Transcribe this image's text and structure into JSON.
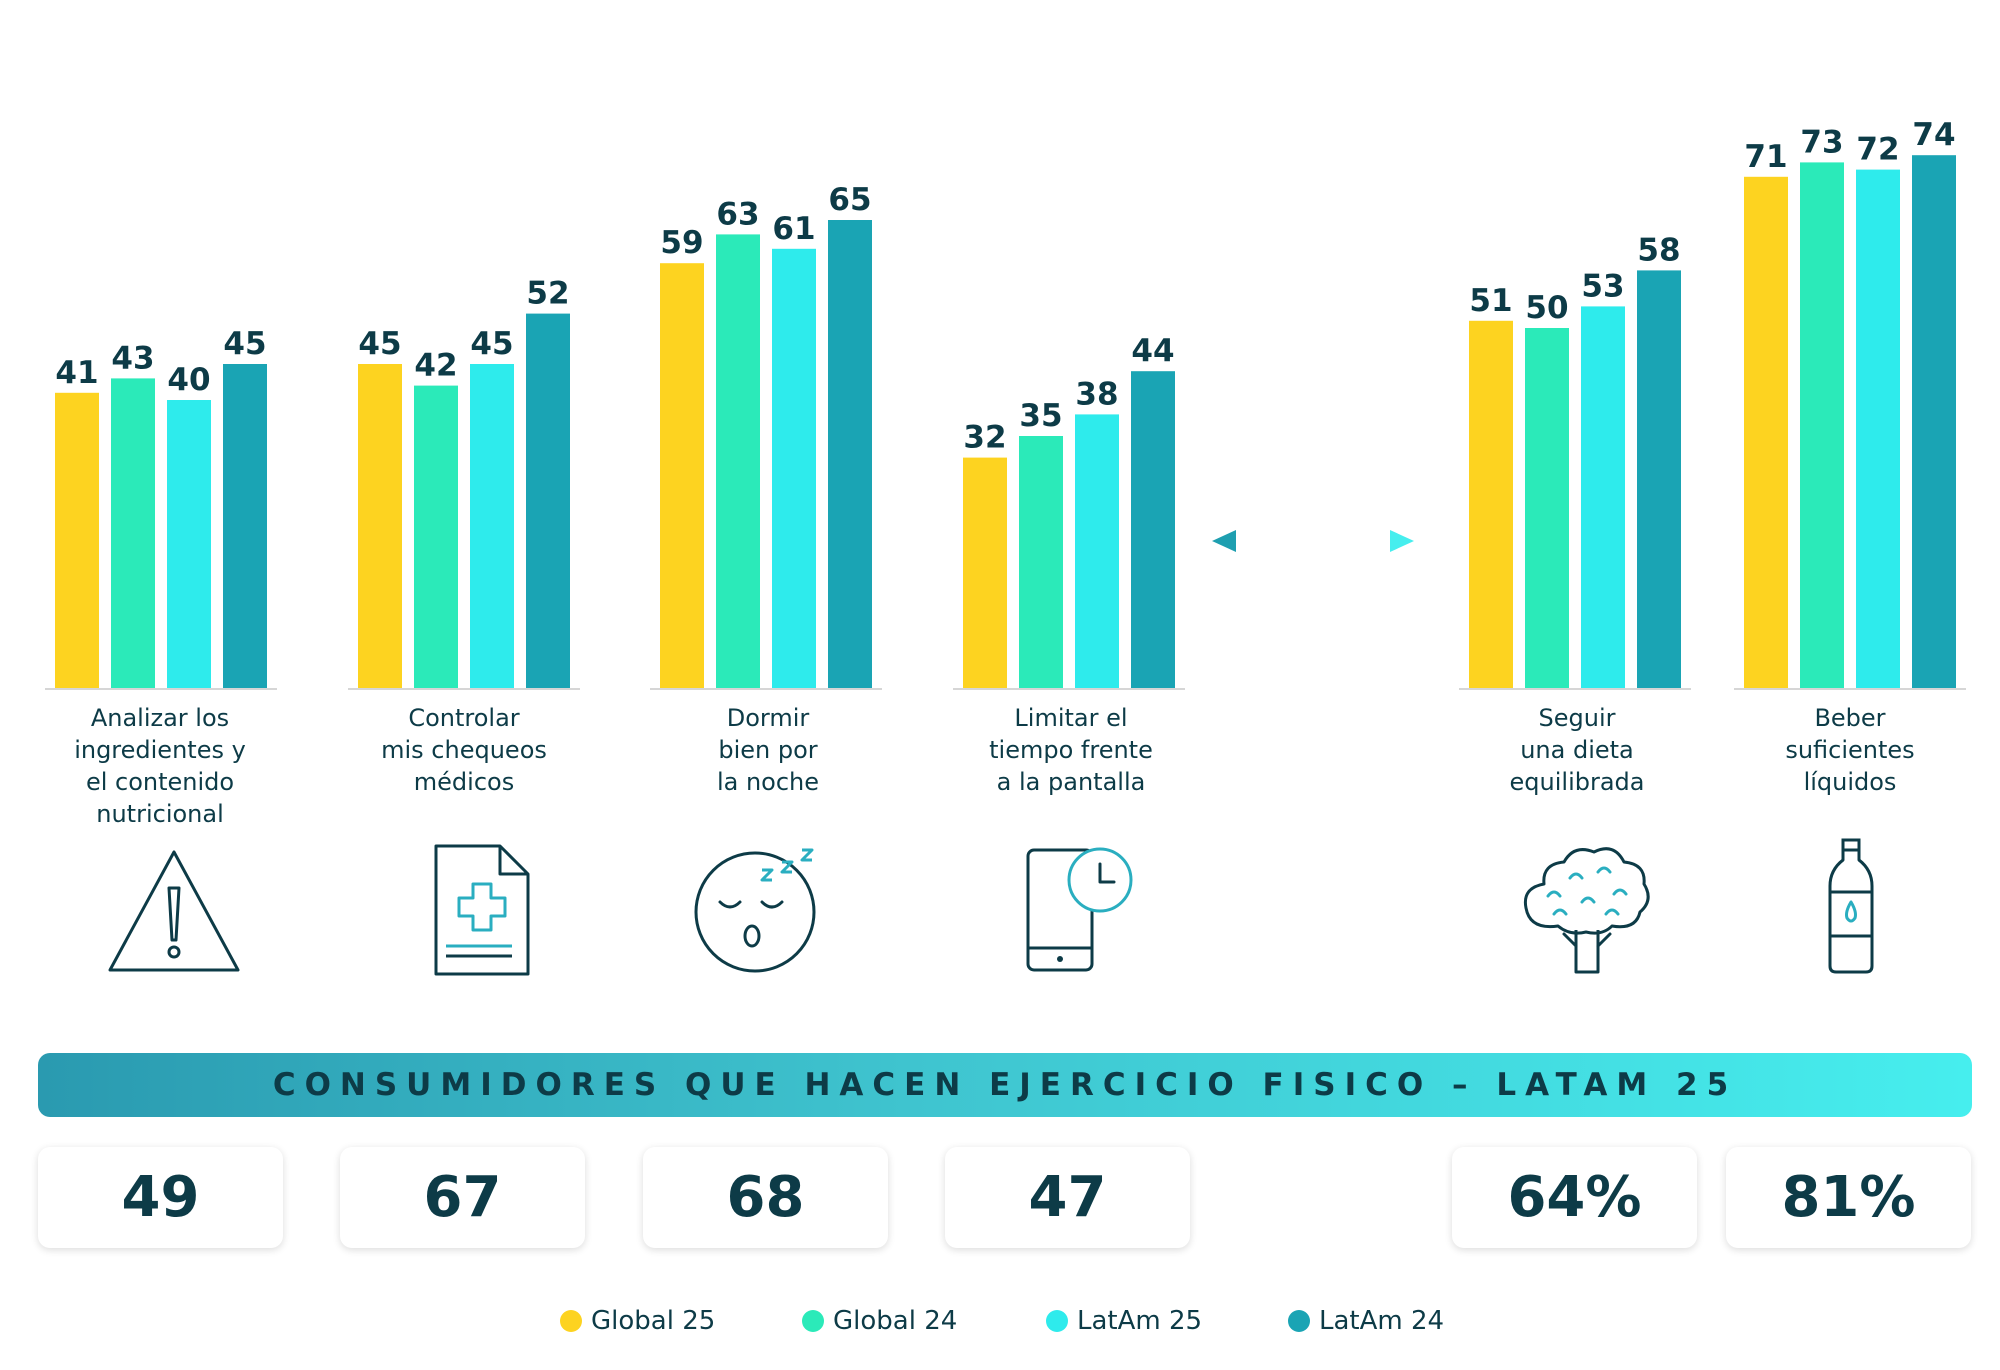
{
  "chart_data": {
    "type": "bar",
    "categories": [
      "Analizar los\ningredientes y\nel contenido\nnutricional",
      "Controlar\nmis chequeos\nmédicos",
      "Dormir\nbien por\nla noche",
      "Limitar el\ntiempo frente\na la pantalla",
      "Seguir\nuna dieta\nequilibrada",
      "Beber\nsuficientes\nlíquidos"
    ],
    "series": [
      {
        "name": "Global 25",
        "color": "#fdd320",
        "values": [
          41,
          45,
          59,
          32,
          51,
          71
        ]
      },
      {
        "name": "Global 24",
        "color": "#2beab9",
        "values": [
          43,
          42,
          63,
          35,
          50,
          73
        ]
      },
      {
        "name": "LatAm 25",
        "color": "#2eebec",
        "values": [
          40,
          45,
          61,
          38,
          53,
          72
        ]
      },
      {
        "name": "LatAm 24",
        "color": "#1aa4b4",
        "values": [
          45,
          52,
          65,
          44,
          58,
          74
        ]
      }
    ],
    "title": "",
    "xlabel": "",
    "ylabel": "",
    "ylim": [
      0,
      80
    ],
    "grid": false,
    "legend_position": "bottom-center"
  },
  "banner": {
    "title": "CONSUMIDORES QUE HACEN EJERCICIO FISICO – LATAM 25"
  },
  "exercise_stats": [
    "49",
    "67",
    "68",
    "47",
    "64%",
    "81%"
  ],
  "icons": [
    "warning-icon",
    "medical-document-icon",
    "sleeping-face-icon",
    "phone-clock-icon",
    "broccoli-icon",
    "water-bottle-icon"
  ],
  "colors": {
    "text": "#0d3b47",
    "arrow": "#2aaec0"
  }
}
